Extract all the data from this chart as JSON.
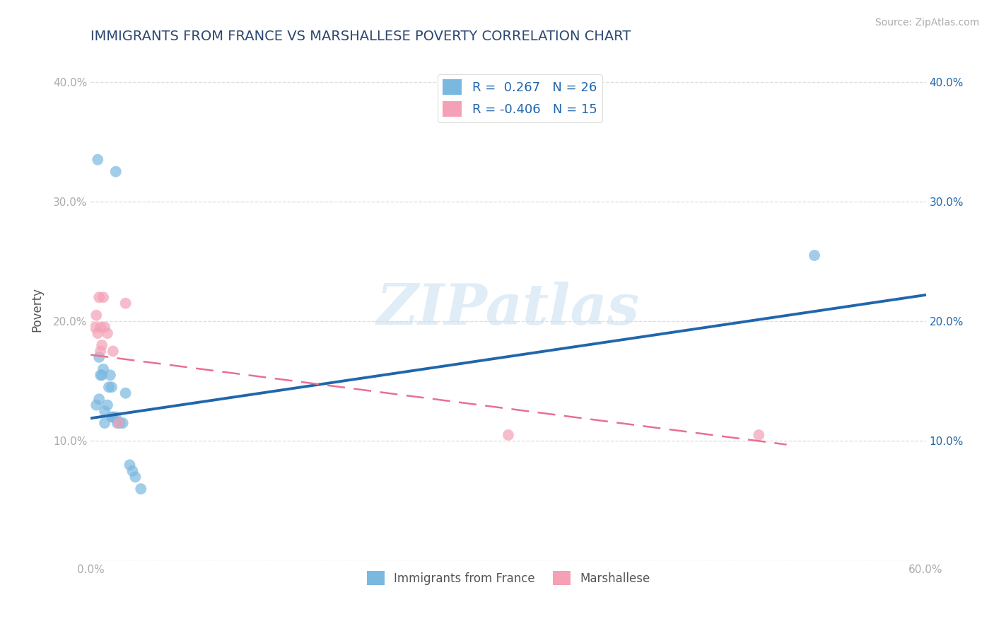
{
  "title": "IMMIGRANTS FROM FRANCE VS MARSHALLESE POVERTY CORRELATION CHART",
  "source": "Source: ZipAtlas.com",
  "ylabel": "Poverty",
  "xlim": [
    0.0,
    0.6
  ],
  "ylim": [
    0.0,
    0.42
  ],
  "xticks": [
    0.0,
    0.1,
    0.2,
    0.3,
    0.4,
    0.5,
    0.6
  ],
  "xticklabels": [
    "0.0%",
    "",
    "",
    "",
    "",
    "",
    "60.0%"
  ],
  "yticks": [
    0.0,
    0.1,
    0.2,
    0.3,
    0.4
  ],
  "yticklabels_left": [
    "",
    "10.0%",
    "20.0%",
    "30.0%",
    "40.0%"
  ],
  "yticklabels_right": [
    "",
    "10.0%",
    "20.0%",
    "30.0%",
    "40.0%"
  ],
  "watermark": "ZIPatlas",
  "blue_R": 0.267,
  "blue_N": 26,
  "pink_R": -0.406,
  "pink_N": 15,
  "blue_color": "#7ab8e0",
  "pink_color": "#f4a0b5",
  "blue_line_color": "#2166ac",
  "pink_line_color": "#e87090",
  "blue_scatter": [
    [
      0.005,
      0.335
    ],
    [
      0.018,
      0.325
    ],
    [
      0.004,
      0.13
    ],
    [
      0.006,
      0.135
    ],
    [
      0.006,
      0.17
    ],
    [
      0.007,
      0.155
    ],
    [
      0.008,
      0.155
    ],
    [
      0.009,
      0.16
    ],
    [
      0.01,
      0.125
    ],
    [
      0.01,
      0.115
    ],
    [
      0.012,
      0.13
    ],
    [
      0.013,
      0.145
    ],
    [
      0.014,
      0.155
    ],
    [
      0.015,
      0.145
    ],
    [
      0.015,
      0.12
    ],
    [
      0.016,
      0.12
    ],
    [
      0.018,
      0.12
    ],
    [
      0.019,
      0.115
    ],
    [
      0.021,
      0.115
    ],
    [
      0.023,
      0.115
    ],
    [
      0.025,
      0.14
    ],
    [
      0.028,
      0.08
    ],
    [
      0.03,
      0.075
    ],
    [
      0.032,
      0.07
    ],
    [
      0.036,
      0.06
    ],
    [
      0.52,
      0.255
    ]
  ],
  "pink_scatter": [
    [
      0.003,
      0.195
    ],
    [
      0.004,
      0.205
    ],
    [
      0.005,
      0.19
    ],
    [
      0.006,
      0.22
    ],
    [
      0.007,
      0.195
    ],
    [
      0.007,
      0.175
    ],
    [
      0.008,
      0.18
    ],
    [
      0.009,
      0.22
    ],
    [
      0.01,
      0.195
    ],
    [
      0.012,
      0.19
    ],
    [
      0.016,
      0.175
    ],
    [
      0.02,
      0.115
    ],
    [
      0.025,
      0.215
    ],
    [
      0.3,
      0.105
    ],
    [
      0.48,
      0.105
    ]
  ],
  "blue_size": 130,
  "pink_size": 130,
  "title_color": "#2c4770",
  "title_fontsize": 14,
  "axis_label_color": "#555555",
  "tick_color": "#aaaaaa",
  "right_tick_color": "#2166ac",
  "grid_color": "#dddddd",
  "background_color": "#ffffff",
  "blue_line_x": [
    0.0,
    0.6
  ],
  "blue_line_y": [
    0.119,
    0.222
  ],
  "pink_line_x": [
    0.0,
    0.5
  ],
  "pink_line_y": [
    0.172,
    0.097
  ]
}
